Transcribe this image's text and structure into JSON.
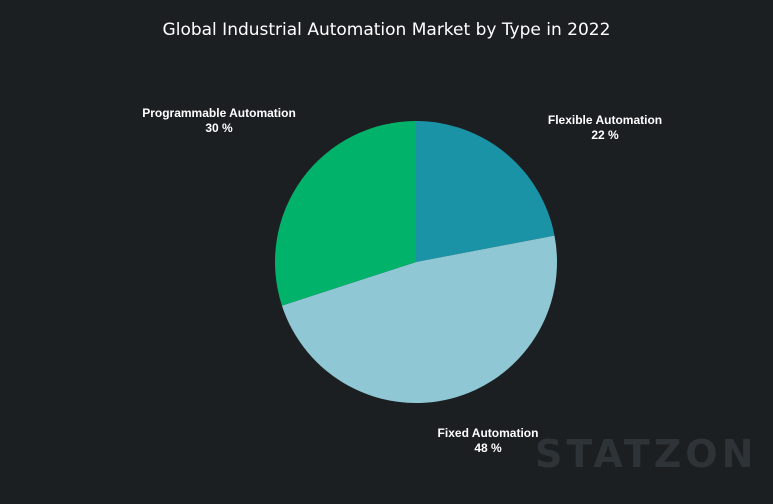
{
  "chart_data": {
    "type": "pie",
    "title": "Global Industrial Automation Market  by Type in 2022",
    "slices": [
      {
        "label": "Flexible Automation",
        "value": 22,
        "value_label": "22 %",
        "color": "#1a93a6"
      },
      {
        "label": "Fixed Automation",
        "value": 48,
        "value_label": "48 %",
        "color": "#8fc8d4"
      },
      {
        "label": "Programmable Automation",
        "value": 30,
        "value_label": "30 %",
        "color": "#00b26a"
      }
    ],
    "start_angle": "top",
    "direction": "clockwise"
  },
  "watermark": "STATZON"
}
